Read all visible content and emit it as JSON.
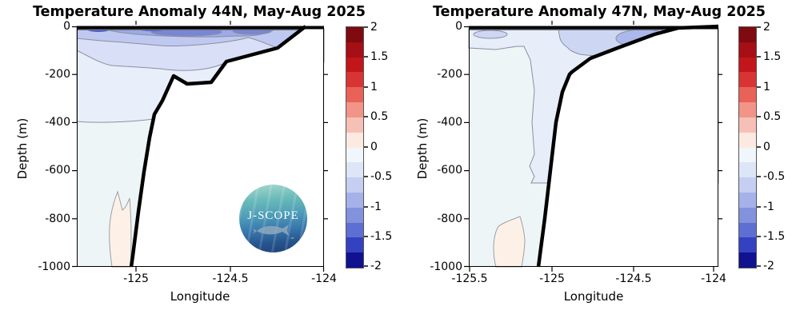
{
  "panels": [
    {
      "title": "Temperature Anomaly 44N, May-Aug 2025",
      "ylabel": "Depth (m)",
      "xlabel": "Longitude",
      "yticks": [
        "0",
        "-200",
        "-400",
        "-600",
        "-800",
        "-1000"
      ],
      "xticks": [
        "-125",
        "-124.5",
        "-124"
      ],
      "cbticks": [
        "2",
        "1.5",
        "1",
        "0.5",
        "0",
        "-0.5",
        "-1",
        "-1.5",
        "-2"
      ]
    },
    {
      "title": "Temperature Anomaly 47N, May-Aug 2025",
      "ylabel": "Depth (m)",
      "xlabel": "Longitude",
      "yticks": [
        "0",
        "-200",
        "-400",
        "-600",
        "-800",
        "-1000"
      ],
      "xticks": [
        "-125.5",
        "-125",
        "-124.5",
        "-124"
      ],
      "cbticks": [
        "2",
        "1.5",
        "1",
        "0.5",
        "0",
        "-0.5",
        "-1",
        "-1.5",
        "-2"
      ]
    }
  ],
  "logo": {
    "text": "J-SCOPE"
  },
  "palette": {
    "colorbar": [
      "#7f0a10",
      "#a50f15",
      "#c2161b",
      "#d93434",
      "#e96257",
      "#f29487",
      "#f7c0b6",
      "#fceae2",
      "#f1f6fc",
      "#dde6f7",
      "#c4cff2",
      "#a5b2ea",
      "#8292dd",
      "#5e6fd3",
      "#3442c1",
      "#10128f"
    ],
    "base": "#edf5f7",
    "pale": "#e8eefa",
    "light": "#d8dff6",
    "mid": "#bfc8f0",
    "deepblue": "#9daae6",
    "core": "#7886d8",
    "navy": "#4c5ac8",
    "rpale": "#e7edf9",
    "rlight": "#cdd7f4",
    "rcore": "#abb8eb",
    "pink": "#fdf1e7",
    "mask": "#ffffff",
    "bathy": "#000000",
    "contour_line": "#8a90a0"
  },
  "chart_data": [
    {
      "type": "contour_section",
      "title": "Temperature Anomaly 44N, May-Aug 2025",
      "xlabel": "Longitude",
      "ylabel": "Depth (m)",
      "xlim": [
        -125.32,
        -124.0
      ],
      "ylim": [
        -1000,
        0
      ],
      "xticks": [
        -125,
        -124.5,
        -124
      ],
      "yticks": [
        0,
        -200,
        -400,
        -600,
        -800,
        -1000
      ],
      "colorbar": {
        "range": [
          -2,
          2
        ],
        "step": 0.25,
        "tick_values": [
          2,
          1.5,
          1,
          0.5,
          0,
          -0.5,
          -1,
          -1.5,
          -2
        ],
        "orientation": "vertical",
        "position": "right"
      },
      "bathymetry_profile": {
        "lon": [
          -124.1,
          -124.25,
          -124.45,
          -124.52,
          -124.6,
          -124.72,
          -124.8,
          -124.86,
          -124.9,
          -124.93,
          -124.96,
          -124.99,
          -125.02,
          -125.03
        ],
        "depth": [
          0,
          -90,
          -133,
          -146,
          -232,
          -239,
          -206,
          -309,
          -365,
          -462,
          -605,
          -771,
          -953,
          -1000
        ]
      },
      "anomaly_regions": [
        {
          "level_range": [
            -0.25,
            0
          ],
          "where": "deep water column below ~400 m, west of the slope"
        },
        {
          "level_range": [
            -0.5,
            -0.25
          ],
          "where": "layer from ~150 m to ~400 m across the section"
        },
        {
          "level_range": [
            -0.75,
            -0.5
          ],
          "where": "upper ~100 m across most of the section"
        },
        {
          "level_range": [
            -1,
            -0.75
          ],
          "where": "upper ~50 m between about -124.9 and -124.2"
        },
        {
          "level_range": [
            -1.25,
            -1
          ],
          "where": "surface cores near -124.6 and -124.35"
        },
        {
          "level_range": [
            0,
            0.25
          ],
          "where": "small warm patch on the slope between ~750 and 1000 m near -125.05"
        }
      ]
    },
    {
      "type": "contour_section",
      "title": "Temperature Anomaly 47N, May-Aug 2025",
      "xlabel": "Longitude",
      "ylabel": "Depth (m)",
      "xlim": [
        -125.52,
        -123.97
      ],
      "ylim": [
        -1000,
        0
      ],
      "xticks": [
        -125.5,
        -125,
        -124.5,
        -124
      ],
      "yticks": [
        0,
        -200,
        -400,
        -600,
        -800,
        -1000
      ],
      "colorbar": {
        "range": [
          -2,
          2
        ],
        "step": 0.25,
        "tick_values": [
          2,
          1.5,
          1,
          0.5,
          0,
          -0.5,
          -1,
          -1.5,
          -2
        ],
        "orientation": "vertical",
        "position": "right"
      },
      "bathymetry_profile": {
        "lon": [
          -123.97,
          -124.21,
          -124.36,
          -124.59,
          -124.76,
          -124.87,
          -124.89,
          -124.93,
          -124.97,
          -125.0,
          -125.04,
          -125.08
        ],
        "depth": [
          0,
          -7,
          -33,
          -90,
          -133,
          -190,
          -200,
          -273,
          -400,
          -600,
          -800,
          -1000
        ]
      },
      "anomaly_regions": [
        {
          "level_range": [
            -0.25,
            0
          ],
          "where": "most of the water column west of the slope"
        },
        {
          "level_range": [
            -0.5,
            -0.25
          ],
          "where": "upper ~100 m plus a plume along the slope down to ~650 m near -125.05"
        },
        {
          "level_range": [
            -0.75,
            -0.5
          ],
          "where": "patch in upper ~80 m between about -124.65 and -124.2, and a small surface oval near -125.45"
        },
        {
          "level_range": [
            -1,
            -0.75
          ],
          "where": "surface core near -124.45 to -124.25"
        },
        {
          "level_range": [
            0,
            0.25
          ],
          "where": "small warm patch near the slope between ~800 and 1000 m near -125.2"
        }
      ]
    }
  ]
}
